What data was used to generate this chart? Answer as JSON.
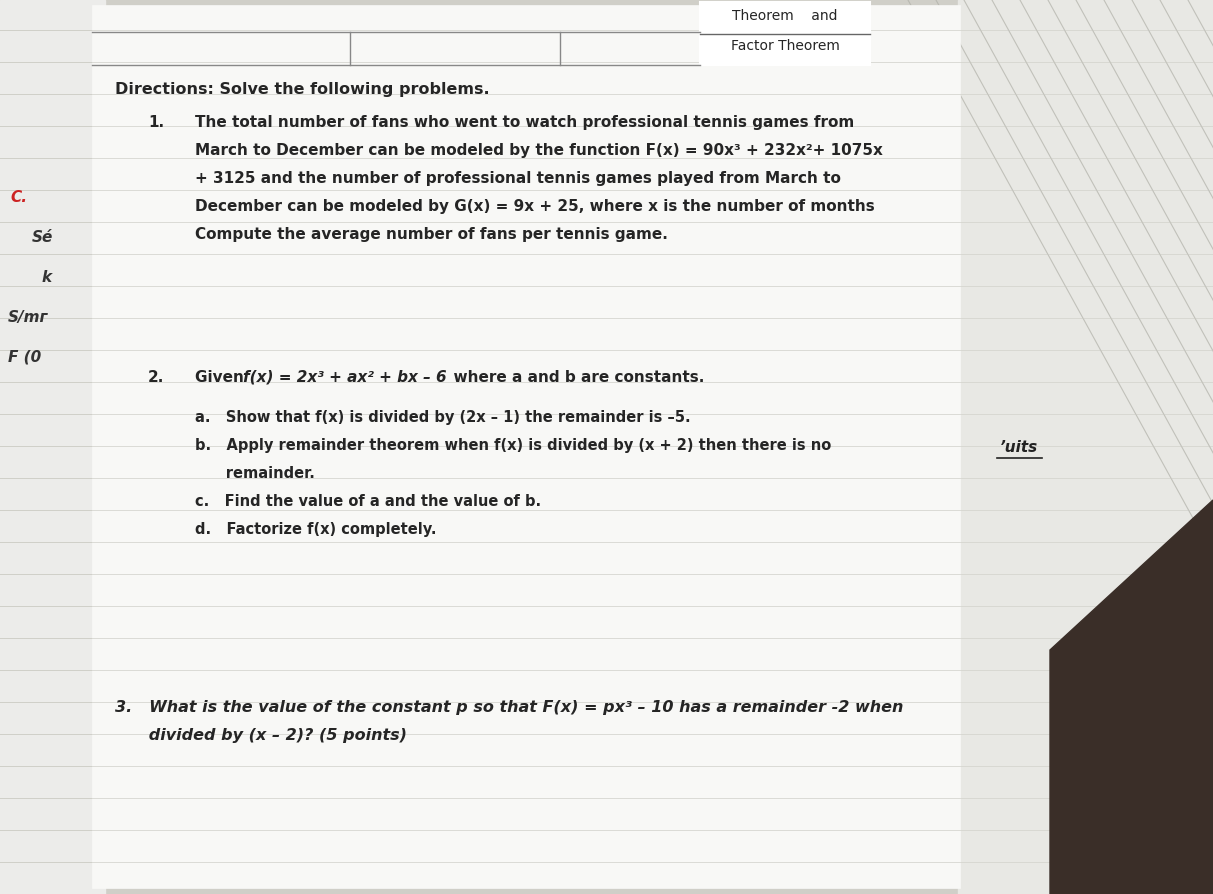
{
  "bg_color": "#d0cfc8",
  "main_paper_color": "#f8f8f6",
  "left_notebook_color": "#ececea",
  "right_notebook_color": "#e8e8e4",
  "dark_wood_color": "#3a2e28",
  "header_text_line1": "Theorem    and",
  "header_text_line2": "Factor Theorem",
  "directions_text": "Directions: Solve the following problems.",
  "q1_number": "1.",
  "q1_line1": "The total number of fans who went to watch professional tennis games from",
  "q1_line2": "March to December can be modeled by the function F(x) = 90x³ + 232x²+ 1075x",
  "q1_line3": "+ 3125 and the number of professional tennis games played from March to",
  "q1_line4": "December can be modeled by G(x) = 9x + 25, where x is the number of months",
  "q1_line5": "Compute the average number of fans per tennis game.",
  "q2_number": "2.",
  "q2_given": "Given ",
  "q2_fx": "f(x) = 2x³ + ax² + bx – 6",
  "q2_where": "  where a and b are constants.",
  "q2a": "a.   Show that f(x) is divided by (2x – 1) the remainder is –5.",
  "q2b1": "b.   Apply remainder theorem when f(x) is divided by (x + 2) then there is no",
  "q2b2": "      remainder.",
  "q2c": "c.   Find the value of a and the value of b.",
  "q2d": "d.   Factorize f(x) completely.",
  "q3_line1": "3.   What is the value of the constant p so that F(x) = px³ – 10 has a remainder -2 when",
  "q3_line2": "      divided by (x – 2)? (5 points)",
  "left_annots": [
    {
      "text": "C.",
      "color": "#cc2222"
    },
    {
      "text": "Sé",
      "color": "#333333"
    },
    {
      "text": "k",
      "color": "#333333"
    },
    {
      "text": "S/mг",
      "color": "#333333"
    },
    {
      "text": "F (0",
      "color": "#333333"
    }
  ],
  "units_text": "ʼuits",
  "line_color": "#c8c8c0",
  "diag_line_color": "#b0b0a8",
  "text_color": "#252525",
  "header_border_color": "#666666",
  "top_rule_color": "#888888"
}
